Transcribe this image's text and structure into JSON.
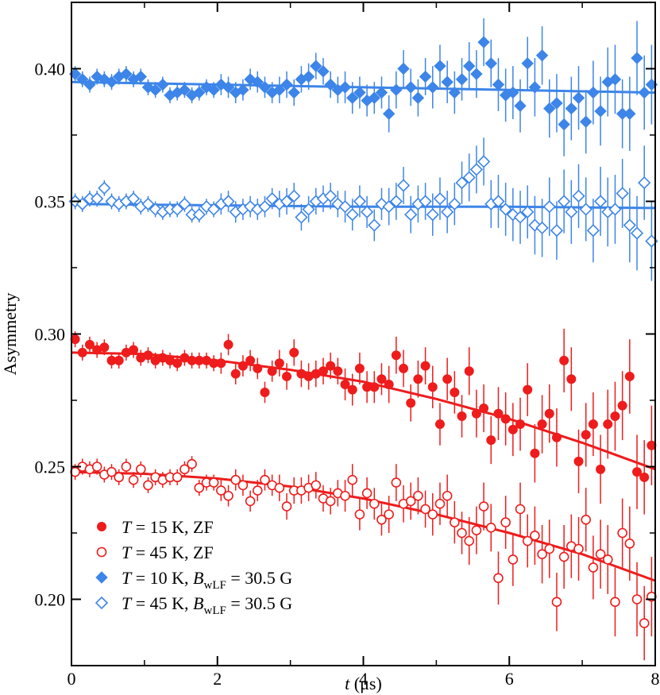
{
  "chart_data": {
    "type": "scatter",
    "title": "",
    "xlabel": {
      "italic": "t",
      "rest": " (μs)"
    },
    "ylabel": "Asymmetry",
    "xlim": [
      0,
      8
    ],
    "ylim": [
      0.175,
      0.425
    ],
    "xticks": [
      0,
      2,
      4,
      6,
      8
    ],
    "xtick_labels": [
      "0",
      "2",
      "4",
      "6",
      "8"
    ],
    "yticks": [
      0.2,
      0.25,
      0.3,
      0.35,
      0.4
    ],
    "ytick_labels": [
      "0.20",
      "0.25",
      "0.30",
      "0.35",
      "0.40"
    ],
    "legend_position": "bottom-left",
    "colors": {
      "red": "#ee1c1c",
      "blue": "#3d85e8"
    },
    "series": [
      {
        "name": "T = 15 K, ZF",
        "legend": {
          "var": "T",
          "eq": " = 15 K, ZF",
          "field_var": "",
          "field_sub": "",
          "field_val": ""
        },
        "marker": "circle",
        "filled": true,
        "color": "#ee1c1c",
        "x": [
          0.05,
          0.15,
          0.25,
          0.35,
          0.45,
          0.55,
          0.65,
          0.75,
          0.85,
          0.95,
          1.05,
          1.15,
          1.25,
          1.35,
          1.45,
          1.55,
          1.65,
          1.75,
          1.85,
          1.95,
          2.05,
          2.15,
          2.25,
          2.35,
          2.45,
          2.55,
          2.65,
          2.75,
          2.85,
          2.95,
          3.05,
          3.15,
          3.25,
          3.35,
          3.45,
          3.55,
          3.65,
          3.75,
          3.85,
          3.95,
          4.05,
          4.15,
          4.25,
          4.35,
          4.45,
          4.55,
          4.65,
          4.75,
          4.85,
          4.95,
          5.05,
          5.15,
          5.25,
          5.35,
          5.45,
          5.55,
          5.65,
          5.75,
          5.85,
          5.95,
          6.05,
          6.15,
          6.25,
          6.35,
          6.45,
          6.55,
          6.65,
          6.75,
          6.85,
          6.95,
          7.05,
          7.15,
          7.25,
          7.35,
          7.45,
          7.55,
          7.65,
          7.75,
          7.85,
          7.95
        ],
        "y": [
          0.298,
          0.293,
          0.296,
          0.294,
          0.295,
          0.29,
          0.29,
          0.293,
          0.294,
          0.291,
          0.292,
          0.29,
          0.291,
          0.29,
          0.289,
          0.291,
          0.29,
          0.29,
          0.29,
          0.289,
          0.289,
          0.296,
          0.285,
          0.288,
          0.29,
          0.287,
          0.278,
          0.286,
          0.289,
          0.284,
          0.293,
          0.285,
          0.284,
          0.285,
          0.286,
          0.288,
          0.286,
          0.281,
          0.279,
          0.287,
          0.28,
          0.28,
          0.283,
          0.281,
          0.292,
          0.287,
          0.274,
          0.283,
          0.288,
          0.28,
          0.266,
          0.283,
          0.278,
          0.269,
          0.286,
          0.27,
          0.272,
          0.26,
          0.27,
          0.268,
          0.264,
          0.266,
          0.279,
          0.255,
          0.266,
          0.27,
          0.261,
          0.29,
          0.283,
          0.252,
          0.262,
          0.266,
          0.249,
          0.266,
          0.269,
          0.273,
          0.284,
          0.248,
          0.246,
          0.258
        ],
        "err": [
          0.003,
          0.003,
          0.003,
          0.003,
          0.003,
          0.003,
          0.003,
          0.003,
          0.003,
          0.003,
          0.003,
          0.003,
          0.003,
          0.003,
          0.003,
          0.003,
          0.003,
          0.003,
          0.003,
          0.003,
          0.004,
          0.004,
          0.004,
          0.004,
          0.004,
          0.004,
          0.004,
          0.004,
          0.005,
          0.005,
          0.005,
          0.005,
          0.005,
          0.005,
          0.005,
          0.005,
          0.005,
          0.006,
          0.006,
          0.006,
          0.006,
          0.006,
          0.006,
          0.007,
          0.007,
          0.007,
          0.007,
          0.007,
          0.007,
          0.008,
          0.008,
          0.008,
          0.008,
          0.008,
          0.009,
          0.009,
          0.009,
          0.009,
          0.01,
          0.01,
          0.01,
          0.01,
          0.01,
          0.011,
          0.011,
          0.011,
          0.011,
          0.012,
          0.012,
          0.012,
          0.012,
          0.012,
          0.013,
          0.013,
          0.013,
          0.013,
          0.014,
          0.014,
          0.014,
          0.015
        ]
      },
      {
        "name": "T = 45 K, ZF",
        "legend": {
          "var": "T",
          "eq": " = 45 K, ZF",
          "field_var": "",
          "field_sub": "",
          "field_val": ""
        },
        "marker": "circle",
        "filled": false,
        "color": "#ee1c1c",
        "x": [
          0.05,
          0.15,
          0.25,
          0.35,
          0.45,
          0.55,
          0.65,
          0.75,
          0.85,
          0.95,
          1.05,
          1.15,
          1.25,
          1.35,
          1.45,
          1.55,
          1.65,
          1.75,
          1.85,
          1.95,
          2.05,
          2.15,
          2.25,
          2.35,
          2.45,
          2.55,
          2.65,
          2.75,
          2.85,
          2.95,
          3.05,
          3.15,
          3.25,
          3.35,
          3.45,
          3.55,
          3.65,
          3.75,
          3.85,
          3.95,
          4.05,
          4.15,
          4.25,
          4.35,
          4.45,
          4.55,
          4.65,
          4.75,
          4.85,
          4.95,
          5.05,
          5.15,
          5.25,
          5.35,
          5.45,
          5.55,
          5.65,
          5.75,
          5.85,
          5.95,
          6.05,
          6.15,
          6.25,
          6.35,
          6.45,
          6.55,
          6.65,
          6.75,
          6.85,
          6.95,
          7.05,
          7.15,
          7.25,
          7.35,
          7.45,
          7.55,
          7.65,
          7.75,
          7.85,
          7.95
        ],
        "y": [
          0.248,
          0.25,
          0.249,
          0.25,
          0.247,
          0.248,
          0.246,
          0.25,
          0.245,
          0.249,
          0.243,
          0.246,
          0.245,
          0.246,
          0.246,
          0.249,
          0.251,
          0.242,
          0.244,
          0.244,
          0.241,
          0.239,
          0.245,
          0.243,
          0.237,
          0.241,
          0.245,
          0.243,
          0.242,
          0.235,
          0.241,
          0.241,
          0.242,
          0.243,
          0.238,
          0.237,
          0.24,
          0.239,
          0.245,
          0.232,
          0.24,
          0.236,
          0.23,
          0.232,
          0.244,
          0.236,
          0.237,
          0.239,
          0.234,
          0.232,
          0.236,
          0.239,
          0.229,
          0.225,
          0.222,
          0.226,
          0.235,
          0.227,
          0.208,
          0.229,
          0.215,
          0.234,
          0.222,
          0.224,
          0.217,
          0.219,
          0.199,
          0.216,
          0.22,
          0.219,
          0.23,
          0.212,
          0.217,
          0.215,
          0.199,
          0.225,
          0.221,
          0.2,
          0.191,
          0.201
        ],
        "err": [
          0.003,
          0.003,
          0.003,
          0.003,
          0.003,
          0.003,
          0.003,
          0.003,
          0.003,
          0.003,
          0.003,
          0.003,
          0.003,
          0.003,
          0.003,
          0.003,
          0.003,
          0.003,
          0.003,
          0.003,
          0.004,
          0.004,
          0.004,
          0.004,
          0.004,
          0.004,
          0.004,
          0.004,
          0.005,
          0.005,
          0.005,
          0.005,
          0.005,
          0.005,
          0.005,
          0.005,
          0.005,
          0.006,
          0.006,
          0.006,
          0.006,
          0.006,
          0.006,
          0.007,
          0.007,
          0.007,
          0.007,
          0.007,
          0.007,
          0.008,
          0.008,
          0.008,
          0.008,
          0.008,
          0.009,
          0.009,
          0.009,
          0.009,
          0.01,
          0.01,
          0.01,
          0.01,
          0.01,
          0.011,
          0.011,
          0.011,
          0.011,
          0.012,
          0.012,
          0.012,
          0.012,
          0.012,
          0.013,
          0.013,
          0.013,
          0.013,
          0.014,
          0.014,
          0.014,
          0.015
        ]
      },
      {
        "name": "T = 10 K, B_wLF = 30.5 G",
        "legend": {
          "var": "T",
          "eq": " = 10 K, ",
          "field_var": "B",
          "field_sub": "wLF",
          "field_val": " = 30.5 G"
        },
        "marker": "diamond",
        "filled": true,
        "color": "#3d85e8",
        "x": [
          0.05,
          0.15,
          0.25,
          0.35,
          0.45,
          0.55,
          0.65,
          0.75,
          0.85,
          0.95,
          1.05,
          1.15,
          1.25,
          1.35,
          1.45,
          1.55,
          1.65,
          1.75,
          1.85,
          1.95,
          2.05,
          2.15,
          2.25,
          2.35,
          2.45,
          2.55,
          2.65,
          2.75,
          2.85,
          2.95,
          3.05,
          3.15,
          3.25,
          3.35,
          3.45,
          3.55,
          3.65,
          3.75,
          3.85,
          3.95,
          4.05,
          4.15,
          4.25,
          4.35,
          4.45,
          4.55,
          4.65,
          4.75,
          4.85,
          4.95,
          5.05,
          5.15,
          5.25,
          5.35,
          5.45,
          5.55,
          5.65,
          5.75,
          5.85,
          5.95,
          6.05,
          6.15,
          6.25,
          6.35,
          6.45,
          6.55,
          6.65,
          6.75,
          6.85,
          6.95,
          7.05,
          7.15,
          7.25,
          7.35,
          7.45,
          7.55,
          7.65,
          7.75,
          7.85,
          7.95
        ],
        "y": [
          0.398,
          0.396,
          0.394,
          0.397,
          0.396,
          0.395,
          0.397,
          0.398,
          0.396,
          0.397,
          0.393,
          0.392,
          0.394,
          0.39,
          0.391,
          0.392,
          0.39,
          0.391,
          0.393,
          0.392,
          0.394,
          0.393,
          0.391,
          0.392,
          0.396,
          0.395,
          0.393,
          0.391,
          0.392,
          0.394,
          0.391,
          0.396,
          0.397,
          0.401,
          0.399,
          0.394,
          0.392,
          0.393,
          0.389,
          0.391,
          0.388,
          0.389,
          0.391,
          0.383,
          0.392,
          0.4,
          0.393,
          0.389,
          0.397,
          0.393,
          0.401,
          0.395,
          0.391,
          0.396,
          0.401,
          0.398,
          0.41,
          0.402,
          0.394,
          0.39,
          0.391,
          0.386,
          0.402,
          0.393,
          0.405,
          0.385,
          0.387,
          0.379,
          0.385,
          0.389,
          0.38,
          0.391,
          0.384,
          0.395,
          0.396,
          0.383,
          0.383,
          0.404,
          0.391,
          0.394
        ],
        "err": [
          0.003,
          0.003,
          0.003,
          0.003,
          0.003,
          0.003,
          0.003,
          0.003,
          0.003,
          0.003,
          0.003,
          0.003,
          0.003,
          0.003,
          0.003,
          0.003,
          0.003,
          0.003,
          0.003,
          0.003,
          0.004,
          0.004,
          0.004,
          0.004,
          0.004,
          0.004,
          0.004,
          0.004,
          0.005,
          0.005,
          0.005,
          0.005,
          0.005,
          0.005,
          0.005,
          0.005,
          0.005,
          0.006,
          0.006,
          0.006,
          0.006,
          0.006,
          0.006,
          0.007,
          0.007,
          0.007,
          0.007,
          0.007,
          0.007,
          0.008,
          0.008,
          0.008,
          0.008,
          0.008,
          0.009,
          0.009,
          0.009,
          0.009,
          0.01,
          0.01,
          0.01,
          0.01,
          0.01,
          0.011,
          0.011,
          0.011,
          0.011,
          0.012,
          0.012,
          0.012,
          0.012,
          0.012,
          0.013,
          0.013,
          0.013,
          0.013,
          0.014,
          0.014,
          0.014,
          0.015
        ]
      },
      {
        "name": "T = 45 K, B_wLF = 30.5 G",
        "legend": {
          "var": "T",
          "eq": " = 45 K, ",
          "field_var": "B",
          "field_sub": "wLF",
          "field_val": " = 30.5 G"
        },
        "marker": "diamond",
        "filled": false,
        "color": "#3d85e8",
        "x": [
          0.05,
          0.15,
          0.25,
          0.35,
          0.45,
          0.55,
          0.65,
          0.75,
          0.85,
          0.95,
          1.05,
          1.15,
          1.25,
          1.35,
          1.45,
          1.55,
          1.65,
          1.75,
          1.85,
          1.95,
          2.05,
          2.15,
          2.25,
          2.35,
          2.45,
          2.55,
          2.65,
          2.75,
          2.85,
          2.95,
          3.05,
          3.15,
          3.25,
          3.35,
          3.45,
          3.55,
          3.65,
          3.75,
          3.85,
          3.95,
          4.05,
          4.15,
          4.25,
          4.35,
          4.45,
          4.55,
          4.65,
          4.75,
          4.85,
          4.95,
          5.05,
          5.15,
          5.25,
          5.35,
          5.45,
          5.55,
          5.65,
          5.75,
          5.85,
          5.95,
          6.05,
          6.15,
          6.25,
          6.35,
          6.45,
          6.55,
          6.65,
          6.75,
          6.85,
          6.95,
          7.05,
          7.15,
          7.25,
          7.35,
          7.45,
          7.55,
          7.65,
          7.75,
          7.85,
          7.95
        ],
        "y": [
          0.35,
          0.349,
          0.351,
          0.351,
          0.355,
          0.35,
          0.349,
          0.35,
          0.351,
          0.348,
          0.349,
          0.347,
          0.346,
          0.347,
          0.347,
          0.349,
          0.345,
          0.345,
          0.348,
          0.347,
          0.349,
          0.35,
          0.346,
          0.347,
          0.348,
          0.347,
          0.348,
          0.351,
          0.349,
          0.35,
          0.352,
          0.344,
          0.347,
          0.35,
          0.351,
          0.352,
          0.349,
          0.348,
          0.345,
          0.35,
          0.346,
          0.341,
          0.349,
          0.348,
          0.35,
          0.356,
          0.345,
          0.349,
          0.35,
          0.345,
          0.351,
          0.346,
          0.349,
          0.357,
          0.359,
          0.362,
          0.365,
          0.349,
          0.35,
          0.347,
          0.345,
          0.344,
          0.346,
          0.341,
          0.34,
          0.348,
          0.339,
          0.35,
          0.346,
          0.352,
          0.347,
          0.339,
          0.35,
          0.346,
          0.347,
          0.353,
          0.341,
          0.338,
          0.357,
          0.335
        ],
        "err": [
          0.003,
          0.003,
          0.003,
          0.003,
          0.003,
          0.003,
          0.003,
          0.003,
          0.003,
          0.003,
          0.003,
          0.003,
          0.003,
          0.003,
          0.003,
          0.003,
          0.003,
          0.003,
          0.003,
          0.003,
          0.004,
          0.004,
          0.004,
          0.004,
          0.004,
          0.004,
          0.004,
          0.004,
          0.005,
          0.005,
          0.005,
          0.005,
          0.005,
          0.005,
          0.005,
          0.005,
          0.005,
          0.006,
          0.006,
          0.006,
          0.006,
          0.006,
          0.006,
          0.007,
          0.007,
          0.007,
          0.007,
          0.007,
          0.007,
          0.008,
          0.008,
          0.008,
          0.008,
          0.008,
          0.009,
          0.009,
          0.009,
          0.009,
          0.01,
          0.01,
          0.01,
          0.01,
          0.01,
          0.011,
          0.011,
          0.011,
          0.011,
          0.012,
          0.012,
          0.012,
          0.012,
          0.012,
          0.013,
          0.013,
          0.013,
          0.013,
          0.014,
          0.014,
          0.014,
          0.015
        ]
      }
    ],
    "fits": [
      {
        "series": "T = 15 K, ZF",
        "color": "#ee1c1c",
        "x": [
          0,
          1,
          2,
          3,
          4,
          5,
          6,
          7,
          8
        ],
        "y": [
          0.293,
          0.2925,
          0.29,
          0.2865,
          0.282,
          0.2755,
          0.268,
          0.259,
          0.249
        ]
      },
      {
        "series": "T = 45 K, ZF",
        "color": "#ee1c1c",
        "x": [
          0,
          1,
          2,
          3,
          4,
          5,
          6,
          7,
          8
        ],
        "y": [
          0.248,
          0.2473,
          0.2455,
          0.2425,
          0.238,
          0.232,
          0.225,
          0.217,
          0.207
        ]
      },
      {
        "series": "T = 10 K, B_wLF = 30.5 G",
        "color": "#3d85e8",
        "x": [
          0,
          2,
          4,
          6,
          8
        ],
        "y": [
          0.395,
          0.394,
          0.393,
          0.392,
          0.391
        ]
      },
      {
        "series": "T = 45 K, B_wLF = 30.5 G",
        "color": "#3d85e8",
        "x": [
          0,
          2,
          4,
          6,
          8
        ],
        "y": [
          0.349,
          0.3485,
          0.348,
          0.348,
          0.3475
        ]
      }
    ]
  }
}
